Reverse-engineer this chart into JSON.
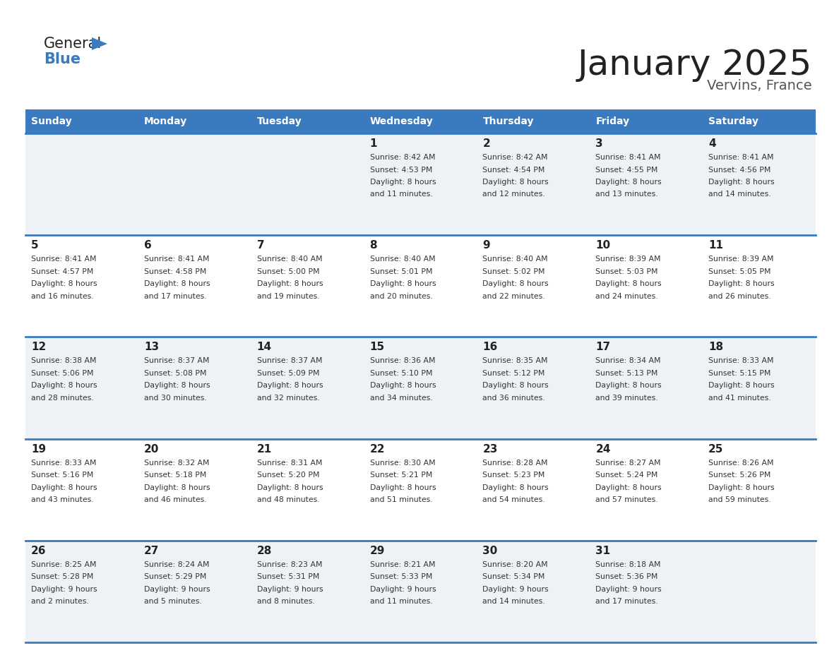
{
  "title": "January 2025",
  "subtitle": "Vervins, France",
  "days_of_week": [
    "Sunday",
    "Monday",
    "Tuesday",
    "Wednesday",
    "Thursday",
    "Friday",
    "Saturday"
  ],
  "header_bg": "#3a7abf",
  "header_text": "#ffffff",
  "cell_bg_odd": "#eef2f7",
  "cell_bg_even": "#ffffff",
  "row_separator_color": "#3a7abf",
  "text_color": "#333333",
  "day_num_color": "#222222",
  "title_color": "#222222",
  "subtitle_color": "#555555",
  "logo_general_color": "#222222",
  "logo_blue_color": "#3a7abf",
  "logo_triangle_color": "#3a7abf",
  "calendar_data": [
    [
      null,
      null,
      null,
      {
        "day": 1,
        "sunrise": "8:42 AM",
        "sunset": "4:53 PM",
        "daylight": "8 hours and 11 minutes."
      },
      {
        "day": 2,
        "sunrise": "8:42 AM",
        "sunset": "4:54 PM",
        "daylight": "8 hours and 12 minutes."
      },
      {
        "day": 3,
        "sunrise": "8:41 AM",
        "sunset": "4:55 PM",
        "daylight": "8 hours and 13 minutes."
      },
      {
        "day": 4,
        "sunrise": "8:41 AM",
        "sunset": "4:56 PM",
        "daylight": "8 hours and 14 minutes."
      }
    ],
    [
      {
        "day": 5,
        "sunrise": "8:41 AM",
        "sunset": "4:57 PM",
        "daylight": "8 hours and 16 minutes."
      },
      {
        "day": 6,
        "sunrise": "8:41 AM",
        "sunset": "4:58 PM",
        "daylight": "8 hours and 17 minutes."
      },
      {
        "day": 7,
        "sunrise": "8:40 AM",
        "sunset": "5:00 PM",
        "daylight": "8 hours and 19 minutes."
      },
      {
        "day": 8,
        "sunrise": "8:40 AM",
        "sunset": "5:01 PM",
        "daylight": "8 hours and 20 minutes."
      },
      {
        "day": 9,
        "sunrise": "8:40 AM",
        "sunset": "5:02 PM",
        "daylight": "8 hours and 22 minutes."
      },
      {
        "day": 10,
        "sunrise": "8:39 AM",
        "sunset": "5:03 PM",
        "daylight": "8 hours and 24 minutes."
      },
      {
        "day": 11,
        "sunrise": "8:39 AM",
        "sunset": "5:05 PM",
        "daylight": "8 hours and 26 minutes."
      }
    ],
    [
      {
        "day": 12,
        "sunrise": "8:38 AM",
        "sunset": "5:06 PM",
        "daylight": "8 hours and 28 minutes."
      },
      {
        "day": 13,
        "sunrise": "8:37 AM",
        "sunset": "5:08 PM",
        "daylight": "8 hours and 30 minutes."
      },
      {
        "day": 14,
        "sunrise": "8:37 AM",
        "sunset": "5:09 PM",
        "daylight": "8 hours and 32 minutes."
      },
      {
        "day": 15,
        "sunrise": "8:36 AM",
        "sunset": "5:10 PM",
        "daylight": "8 hours and 34 minutes."
      },
      {
        "day": 16,
        "sunrise": "8:35 AM",
        "sunset": "5:12 PM",
        "daylight": "8 hours and 36 minutes."
      },
      {
        "day": 17,
        "sunrise": "8:34 AM",
        "sunset": "5:13 PM",
        "daylight": "8 hours and 39 minutes."
      },
      {
        "day": 18,
        "sunrise": "8:33 AM",
        "sunset": "5:15 PM",
        "daylight": "8 hours and 41 minutes."
      }
    ],
    [
      {
        "day": 19,
        "sunrise": "8:33 AM",
        "sunset": "5:16 PM",
        "daylight": "8 hours and 43 minutes."
      },
      {
        "day": 20,
        "sunrise": "8:32 AM",
        "sunset": "5:18 PM",
        "daylight": "8 hours and 46 minutes."
      },
      {
        "day": 21,
        "sunrise": "8:31 AM",
        "sunset": "5:20 PM",
        "daylight": "8 hours and 48 minutes."
      },
      {
        "day": 22,
        "sunrise": "8:30 AM",
        "sunset": "5:21 PM",
        "daylight": "8 hours and 51 minutes."
      },
      {
        "day": 23,
        "sunrise": "8:28 AM",
        "sunset": "5:23 PM",
        "daylight": "8 hours and 54 minutes."
      },
      {
        "day": 24,
        "sunrise": "8:27 AM",
        "sunset": "5:24 PM",
        "daylight": "8 hours and 57 minutes."
      },
      {
        "day": 25,
        "sunrise": "8:26 AM",
        "sunset": "5:26 PM",
        "daylight": "8 hours and 59 minutes."
      }
    ],
    [
      {
        "day": 26,
        "sunrise": "8:25 AM",
        "sunset": "5:28 PM",
        "daylight": "9 hours and 2 minutes."
      },
      {
        "day": 27,
        "sunrise": "8:24 AM",
        "sunset": "5:29 PM",
        "daylight": "9 hours and 5 minutes."
      },
      {
        "day": 28,
        "sunrise": "8:23 AM",
        "sunset": "5:31 PM",
        "daylight": "9 hours and 8 minutes."
      },
      {
        "day": 29,
        "sunrise": "8:21 AM",
        "sunset": "5:33 PM",
        "daylight": "9 hours and 11 minutes."
      },
      {
        "day": 30,
        "sunrise": "8:20 AM",
        "sunset": "5:34 PM",
        "daylight": "9 hours and 14 minutes."
      },
      {
        "day": 31,
        "sunrise": "8:18 AM",
        "sunset": "5:36 PM",
        "daylight": "9 hours and 17 minutes."
      },
      null
    ]
  ]
}
